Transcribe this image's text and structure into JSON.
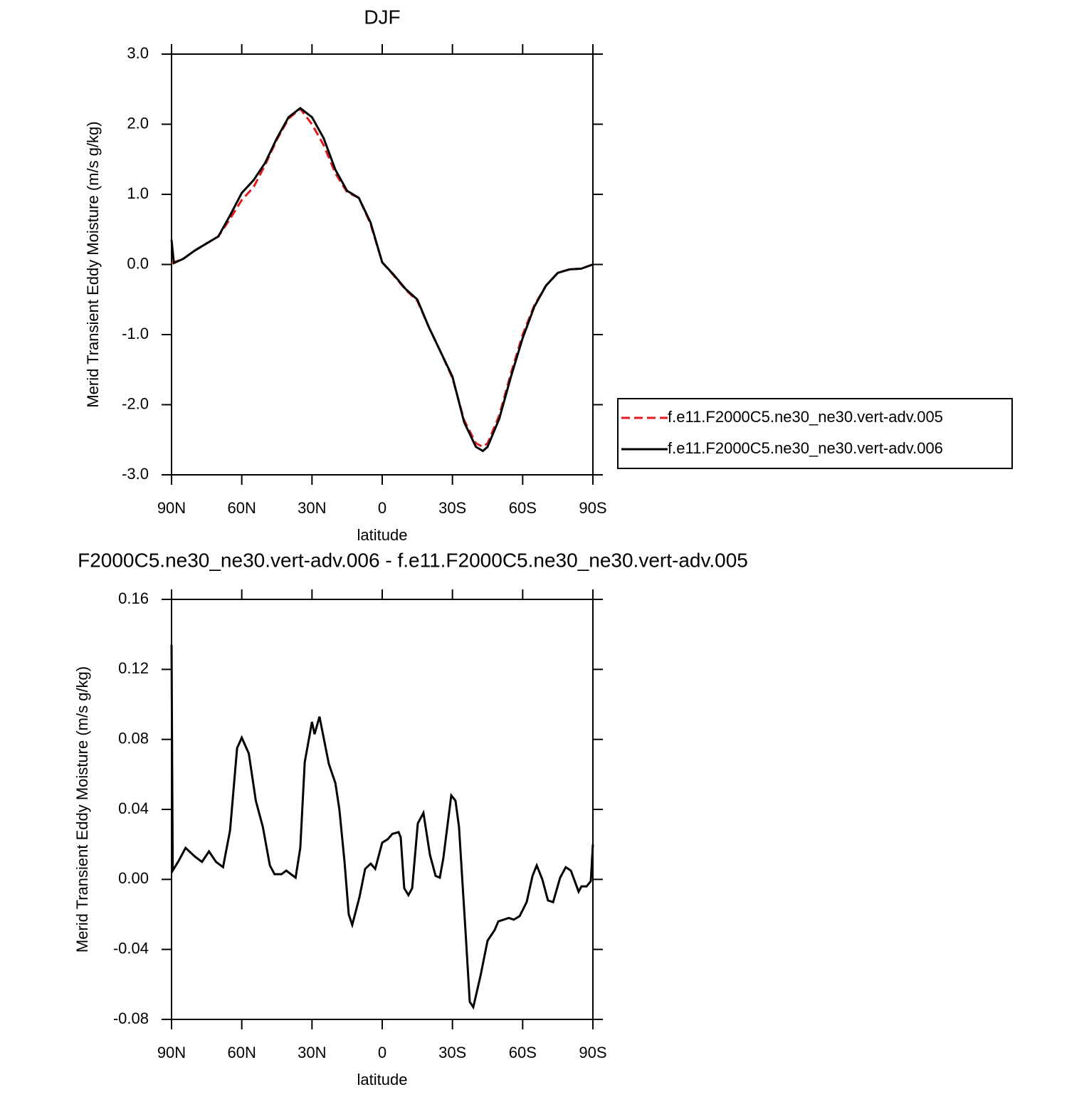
{
  "chart_data": [
    {
      "type": "line",
      "title": "DJF",
      "xlabel": "latitude",
      "ylabel": "Merid Transient Eddy Moisture (m/s g/kg)",
      "x": [
        90,
        89,
        85,
        80,
        75,
        70,
        65,
        60,
        55,
        50,
        45,
        40,
        35,
        30,
        25,
        20,
        15,
        10,
        5,
        0,
        -5,
        -10,
        -15,
        -20,
        -25,
        -30,
        -35,
        -40,
        -43,
        -45,
        -50,
        -55,
        -60,
        -65,
        -70,
        -75,
        -80,
        -85,
        -90
      ],
      "series": [
        {
          "name": "f.e11.F2000C5.ne30_ne30.vert-adv.005",
          "color": "#e41a1c",
          "dash": "dashed",
          "values": [
            0.02,
            0.03,
            0.08,
            0.2,
            0.3,
            0.4,
            0.65,
            0.92,
            1.1,
            1.42,
            1.78,
            2.08,
            2.22,
            2.0,
            1.7,
            1.3,
            1.03,
            0.95,
            0.58,
            0.03,
            -0.16,
            -0.36,
            -0.52,
            -0.9,
            -1.25,
            -1.62,
            -2.22,
            -2.55,
            -2.6,
            -2.55,
            -2.15,
            -1.55,
            -1.0,
            -0.58,
            -0.3,
            -0.12,
            -0.07,
            -0.06,
            0.0
          ]
        },
        {
          "name": "f.e11.F2000C5.ne30_ne30.vert-adv.006",
          "color": "#000000",
          "dash": "solid",
          "values": [
            0.35,
            0.02,
            0.08,
            0.2,
            0.3,
            0.4,
            0.7,
            1.02,
            1.2,
            1.45,
            1.8,
            2.1,
            2.23,
            2.1,
            1.8,
            1.35,
            1.05,
            0.95,
            0.6,
            0.03,
            -0.15,
            -0.35,
            -0.5,
            -0.9,
            -1.25,
            -1.6,
            -2.25,
            -2.6,
            -2.66,
            -2.6,
            -2.2,
            -1.6,
            -1.05,
            -0.6,
            -0.3,
            -0.12,
            -0.07,
            -0.06,
            0.0
          ]
        }
      ],
      "xlim": [
        90,
        -90
      ],
      "xticks": [
        {
          "value": 90,
          "label": "90N"
        },
        {
          "value": 60,
          "label": "60N"
        },
        {
          "value": 30,
          "label": "30N"
        },
        0,
        {
          "value": -30,
          "label": "30S"
        },
        {
          "value": -60,
          "label": "60S"
        },
        {
          "value": -90,
          "label": "90S"
        }
      ],
      "ylim": [
        -3,
        3
      ],
      "yticks": [
        {
          "value": -3,
          "label": "-3.0"
        },
        {
          "value": -2,
          "label": "-2.0"
        },
        {
          "value": -1,
          "label": "-1.0"
        },
        {
          "value": 0,
          "label": "0.0"
        },
        {
          "value": 1,
          "label": "1.0"
        },
        {
          "value": 2,
          "label": "2.0"
        },
        {
          "value": 3,
          "label": "3.0"
        }
      ],
      "legend": "right"
    },
    {
      "type": "line",
      "title": "F2000C5.ne30_ne30.vert-adv.006 - f.e11.F2000C5.ne30_ne30.vert-adv.005",
      "xlabel": "latitude",
      "ylabel": "Merid Transient Eddy Moisture (m/s g/kg)",
      "x": [
        90,
        89.5,
        87,
        84,
        80,
        77,
        74,
        71,
        68,
        65,
        62,
        60,
        57,
        54,
        51,
        48,
        46,
        43,
        41,
        37,
        35,
        33.1,
        30,
        28.9,
        26.8,
        22.8,
        20,
        18.3,
        16.1,
        14.3,
        12.8,
        9.7,
        7.3,
        4.9,
        3,
        0,
        -2.4,
        -4.3,
        -7,
        -7.9,
        -9.4,
        -11.2,
        -12.8,
        -15.2,
        -17.6,
        -20.4,
        -22.8,
        -24.6,
        -26.1,
        -29.5,
        -31.3,
        -32.8,
        -35.6,
        -37.4,
        -38.9,
        -42,
        -45,
        -48,
        -49.6,
        -54.1,
        -56.2,
        -58.7,
        -61.7,
        -64.2,
        -66,
        -68.4,
        -70.8,
        -73,
        -76,
        -78.4,
        -80.6,
        -83.9,
        -85.1,
        -87.3,
        -89.1,
        -90
      ],
      "series": [
        {
          "color": "#000000",
          "dash": "solid",
          "values": [
            0.134,
            0.005,
            0.0105,
            0.018,
            0.013,
            0.01,
            0.016,
            0.01,
            0.007,
            0.028,
            0.075,
            0.081,
            0.072,
            0.045,
            0.03,
            0.008,
            0.003,
            0.003,
            0.005,
            0.001,
            0.018,
            0.067,
            0.09,
            0.083,
            0.093,
            0.066,
            0.055,
            0.04,
            0.01,
            -0.02,
            -0.026,
            -0.01,
            0.006,
            0.009,
            0.006,
            0.021,
            0.023,
            0.026,
            0.027,
            0.024,
            -0.005,
            -0.009,
            -0.005,
            0.032,
            0.038,
            0.014,
            0.002,
            0.001,
            0.012,
            0.048,
            0.045,
            0.03,
            -0.03,
            -0.07,
            -0.073,
            -0.055,
            -0.035,
            -0.029,
            -0.024,
            -0.022,
            -0.023,
            -0.021,
            -0.013,
            0.002,
            0.008,
            0.0,
            -0.012,
            -0.013,
            0.001,
            0.007,
            0.005,
            -0.007,
            -0.004,
            -0.004,
            -0.001,
            0.02
          ]
        }
      ],
      "xlim": [
        90,
        -90
      ],
      "xticks": [
        {
          "value": 90,
          "label": "90N"
        },
        {
          "value": 60,
          "label": "60N"
        },
        {
          "value": 30,
          "label": "30N"
        },
        0,
        {
          "value": -30,
          "label": "30S"
        },
        {
          "value": -60,
          "label": "60S"
        },
        {
          "value": -90,
          "label": "90S"
        }
      ],
      "ylim": [
        -0.08,
        0.16
      ],
      "yticks": [
        -0.08,
        -0.04,
        {
          "value": 0,
          "label": "0.00"
        },
        0.04,
        0.08,
        0.12,
        0.16
      ]
    }
  ]
}
